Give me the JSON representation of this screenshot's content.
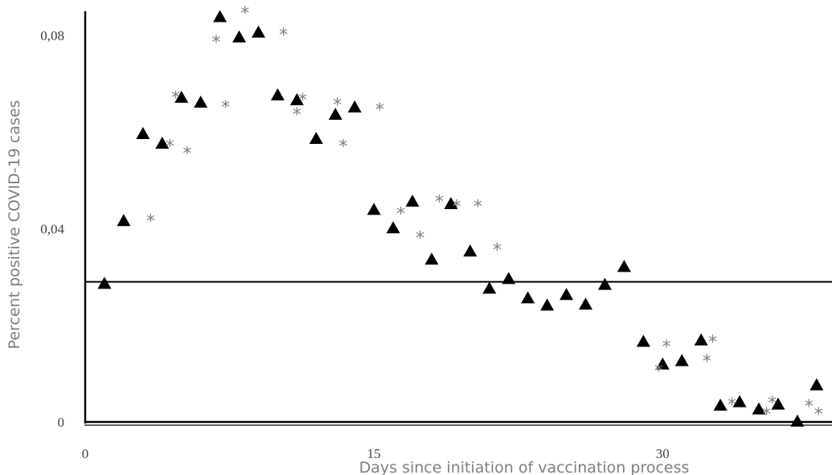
{
  "chart_data": {
    "type": "scatter",
    "title": "",
    "xlabel": "Days since initiation of vaccination process",
    "ylabel": "Percent positive COVID-19 cases",
    "xlim": [
      0,
      38.8
    ],
    "ylim": [
      0,
      0.085
    ],
    "x_ticks": [
      {
        "value": 0,
        "label": "0"
      },
      {
        "value": 15,
        "label": "15"
      },
      {
        "value": 30,
        "label": "30"
      }
    ],
    "y_ticks": [
      {
        "value": 0,
        "label": "0"
      },
      {
        "value": 0.04,
        "label": "0,04"
      },
      {
        "value": 0.08,
        "label": "0,08"
      }
    ],
    "grid": false,
    "legend": "none",
    "reference_line": {
      "y": 0.029,
      "color": "#000000"
    },
    "series": [
      {
        "marker": "triangle",
        "color": "#000000",
        "points": [
          [
            1,
            0.0285
          ],
          [
            2,
            0.0415
          ],
          [
            3,
            0.0595
          ],
          [
            4,
            0.0575
          ],
          [
            5,
            0.067
          ],
          [
            6,
            0.066
          ],
          [
            7,
            0.0837
          ],
          [
            8,
            0.0795
          ],
          [
            9,
            0.0805
          ],
          [
            10,
            0.0675
          ],
          [
            11,
            0.0665
          ],
          [
            12,
            0.0585
          ],
          [
            13,
            0.0635
          ],
          [
            14,
            0.065
          ],
          [
            15,
            0.0438
          ],
          [
            16,
            0.04
          ],
          [
            17,
            0.0455
          ],
          [
            18,
            0.0335
          ],
          [
            19,
            0.045
          ],
          [
            20,
            0.0352
          ],
          [
            21,
            0.0275
          ],
          [
            22,
            0.0295
          ],
          [
            23,
            0.0255
          ],
          [
            24,
            0.024
          ],
          [
            25,
            0.0262
          ],
          [
            26,
            0.0242
          ],
          [
            27,
            0.0283
          ],
          [
            28,
            0.032
          ],
          [
            29,
            0.0165
          ],
          [
            30,
            0.0118
          ],
          [
            31,
            0.0125
          ],
          [
            32,
            0.0168
          ],
          [
            33,
            0.0033
          ],
          [
            34,
            0.004
          ],
          [
            35,
            0.0025
          ],
          [
            36,
            0.0035
          ],
          [
            37,
            0.0
          ],
          [
            38,
            0.0075
          ]
        ]
      },
      {
        "marker": "asterisk",
        "color": "#7f7f7f",
        "points": [
          [
            3.4,
            0.0425
          ],
          [
            4.4,
            0.058
          ],
          [
            4.7,
            0.068
          ],
          [
            5.3,
            0.0565
          ],
          [
            6.8,
            0.0795
          ],
          [
            7.3,
            0.066
          ],
          [
            8.3,
            0.0855
          ],
          [
            10.3,
            0.081
          ],
          [
            11,
            0.0645
          ],
          [
            11.3,
            0.0675
          ],
          [
            13.1,
            0.0665
          ],
          [
            13.4,
            0.058
          ],
          [
            15.3,
            0.0655
          ],
          [
            16.4,
            0.044
          ],
          [
            17.4,
            0.039
          ],
          [
            18.4,
            0.0465
          ],
          [
            19.3,
            0.0455
          ],
          [
            20.4,
            0.0455
          ],
          [
            21.4,
            0.0365
          ],
          [
            29.8,
            0.0115
          ],
          [
            30.2,
            0.0165
          ],
          [
            32.3,
            0.0135
          ],
          [
            32.6,
            0.0175
          ],
          [
            33.6,
            0.0045
          ],
          [
            35.4,
            0.0025
          ],
          [
            35.7,
            0.0048
          ],
          [
            37.6,
            0.0042
          ],
          [
            38.1,
            0.0025
          ]
        ]
      }
    ]
  }
}
